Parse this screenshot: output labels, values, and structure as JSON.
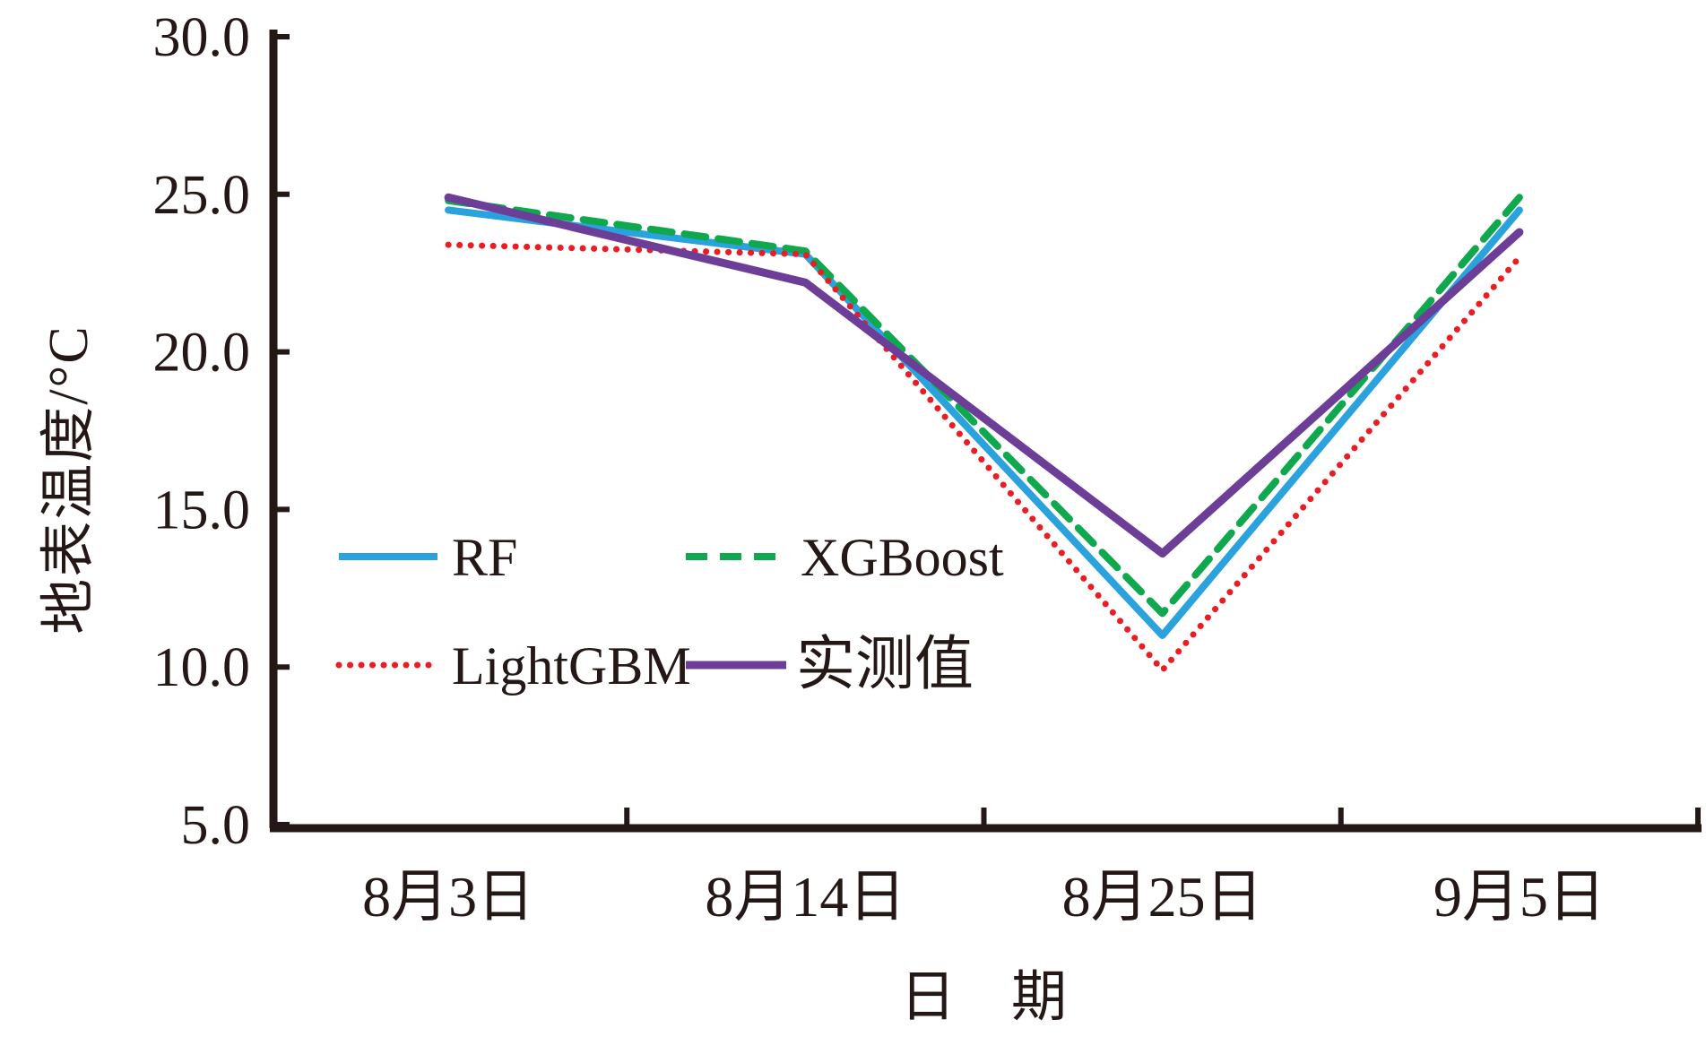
{
  "chart_data": {
    "type": "line",
    "title": "",
    "categories": [
      "8月3日",
      "8月14日",
      "8月25日",
      "9月5日"
    ],
    "series": [
      {
        "name": "RF",
        "values": [
          24.5,
          23.1,
          11.0,
          24.5
        ],
        "color": "#2AA2DE",
        "line_style": "solid"
      },
      {
        "name": "XGBoost",
        "values": [
          24.8,
          23.2,
          11.7,
          24.9
        ],
        "color": "#10A84E",
        "line_style": "dashed"
      },
      {
        "name": "LightGBM",
        "values": [
          23.4,
          23.1,
          9.9,
          23.0
        ],
        "color": "#EA1D25",
        "line_style": "dotted"
      },
      {
        "name": "实测值",
        "values": [
          24.9,
          22.2,
          13.6,
          23.8
        ],
        "color": "#6C3E97",
        "line_style": "solid"
      }
    ],
    "xlabel": "日　期",
    "ylabel": "地表温度/°C",
    "ylim": [
      5.0,
      30.0
    ],
    "ytick_labels": [
      "30.0",
      "25.0",
      "20.0",
      "15.0",
      "10.0",
      "5.0"
    ],
    "ytick_values": [
      30.0,
      25.0,
      20.0,
      15.0,
      10.0,
      5.0
    ],
    "grid": false,
    "legend_position": "inside-left-middle",
    "legend_rows": [
      [
        "RF",
        "XGBoost"
      ],
      [
        "LightGBM",
        "实测值"
      ]
    ],
    "axis_color": "#231815",
    "background": "#FFFFFF"
  }
}
